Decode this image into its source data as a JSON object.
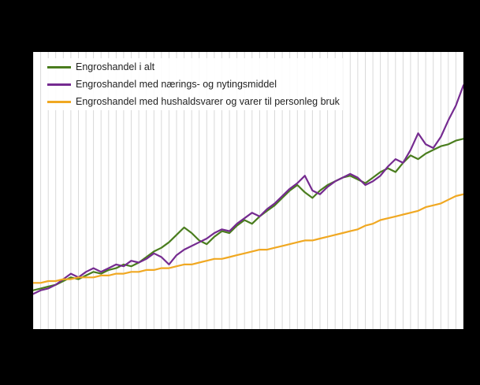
{
  "figure": {
    "background_color": "#000000",
    "panel_background_color": "#ffffff"
  },
  "chart_data": {
    "type": "line",
    "title": "",
    "xlabel": "",
    "ylabel": "",
    "x_count": 58,
    "ylim": [
      75,
      225
    ],
    "grid": {
      "vertical": true,
      "horizontal": false,
      "color": "#d9d9d9"
    },
    "legend_position": "top-left-inside",
    "series": [
      {
        "name": "Engroshandel i alt",
        "color": "#4a7d1e",
        "values": [
          96,
          97,
          98,
          99,
          101,
          103,
          102,
          104,
          106,
          105,
          107,
          108,
          110,
          109,
          111,
          114,
          117,
          119,
          122,
          126,
          130,
          127,
          123,
          121,
          125,
          128,
          127,
          131,
          134,
          132,
          136,
          139,
          142,
          146,
          150,
          153,
          149,
          146,
          150,
          153,
          155,
          157,
          158,
          156,
          154,
          157,
          160,
          162,
          160,
          165,
          169,
          167,
          170,
          172,
          174,
          175,
          177,
          178
        ]
      },
      {
        "name": "Engroshandel med nærings- og nytingsmiddel",
        "color": "#752b90",
        "values": [
          94,
          96,
          97,
          99,
          102,
          105,
          103,
          106,
          108,
          106,
          108,
          110,
          109,
          112,
          111,
          113,
          116,
          114,
          110,
          115,
          118,
          120,
          122,
          124,
          127,
          129,
          128,
          132,
          135,
          138,
          136,
          140,
          143,
          147,
          151,
          154,
          158,
          150,
          148,
          152,
          155,
          157,
          159,
          157,
          153,
          155,
          158,
          163,
          167,
          165,
          172,
          181,
          175,
          173,
          179,
          188,
          196,
          207
        ]
      },
      {
        "name": "Engroshandel med hushaldsvarer og varer til personleg bruk",
        "color": "#f0a822",
        "values": [
          100,
          100,
          101,
          101,
          102,
          102,
          103,
          103,
          103,
          104,
          104,
          105,
          105,
          106,
          106,
          107,
          107,
          108,
          108,
          109,
          110,
          110,
          111,
          112,
          113,
          113,
          114,
          115,
          116,
          117,
          118,
          118,
          119,
          120,
          121,
          122,
          123,
          123,
          124,
          125,
          126,
          127,
          128,
          129,
          131,
          132,
          134,
          135,
          136,
          137,
          138,
          139,
          141,
          142,
          143,
          145,
          147,
          148
        ]
      }
    ]
  }
}
